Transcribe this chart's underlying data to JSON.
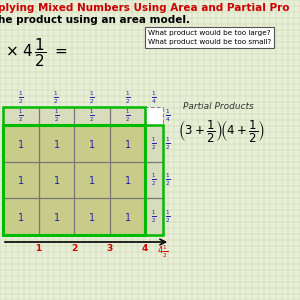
{
  "bg_color": "#e8eed8",
  "grid_color": "#c8d8a8",
  "title_text": "plying Mixed Numbers Using Area and Partial Pro",
  "title_color": "#cc0000",
  "subtitle_text": "he product using an area model.",
  "subtitle_color": "#000000",
  "question_box_text": "What product would be too large?\nWhat product would be too small?",
  "area_fill_color": "#c8cc88",
  "area_outline_color": "#00bb00",
  "partial_products_label": "Partial Products",
  "yellow_color": "#e8e800",
  "right_strip_color": "#d8dcbc",
  "top_strip_color": "#d8dcbc",
  "x_label_color": "#cc0000",
  "cell_label_color": "#2222aa",
  "frac_label_color": "#2222aa"
}
